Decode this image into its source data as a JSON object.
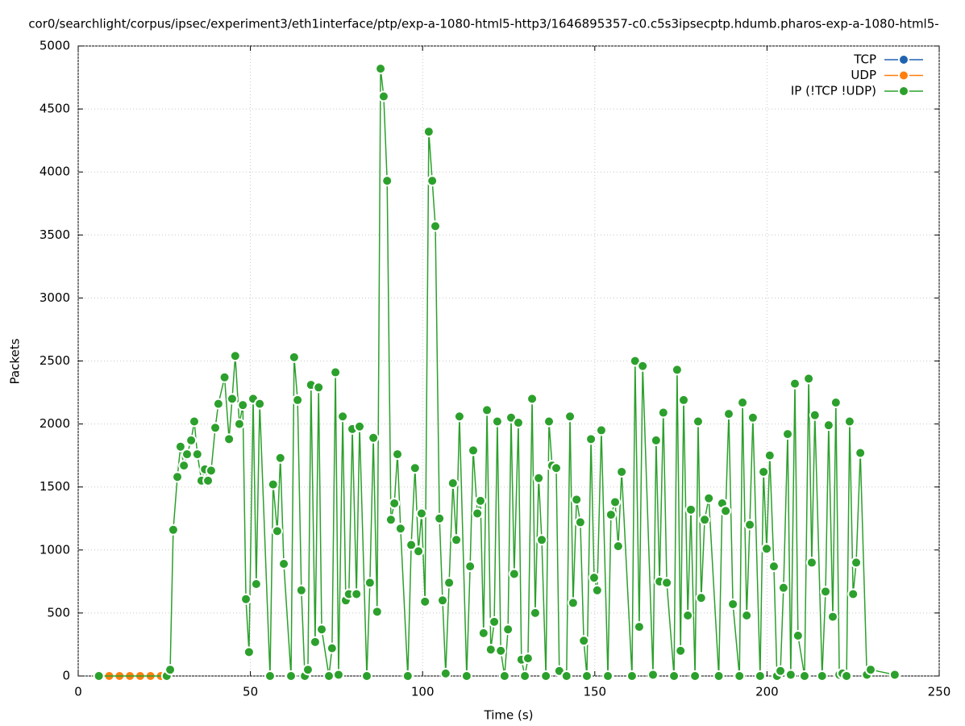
{
  "chart_data": {
    "type": "line",
    "title": "cor0/searchlight/corpus/ipsec/experiment3/eth1interface/ptp/exp-a-1080-html5-http3/1646895357-c0.c5s3ipsecptp.hdumb.pharos-exp-a-1080-html5-",
    "x_label": "Time (s)",
    "y_label": "Packets",
    "xlim": [
      0,
      250
    ],
    "xticks": [
      0,
      50,
      100,
      150,
      200,
      250
    ],
    "ylim": [
      0,
      5000
    ],
    "yticks": [
      0,
      500,
      1000,
      1500,
      2000,
      2500,
      3000,
      3500,
      4000,
      4500,
      5000
    ],
    "grid": true,
    "legend": "top-right",
    "series": [
      {
        "name": "TCP",
        "color": "#1f63b0",
        "x": [
          6,
          9,
          12,
          15,
          18,
          21,
          24
        ],
        "values": [
          0,
          0,
          0,
          0,
          0,
          0,
          0
        ]
      },
      {
        "name": "UDP",
        "color": "#ff7f0e",
        "x": [
          6,
          9,
          12,
          15,
          18,
          21,
          24
        ],
        "values": [
          0,
          0,
          0,
          0,
          0,
          0,
          0
        ]
      },
      {
        "name": "IP (!TCP  !UDP)",
        "color": "#2ca02c",
        "x": [
          6,
          25.7,
          26.7,
          27.6,
          28.8,
          29.7,
          30.7,
          31.6,
          32.8,
          33.7,
          34.6,
          35.8,
          36.8,
          37.7,
          38.6,
          39.8,
          40.7,
          42.5,
          43.8,
          44.7,
          45.6,
          46.8,
          47.8,
          48.7,
          49.6,
          50.8,
          51.7,
          52.7,
          55.7,
          56.6,
          57.8,
          58.7,
          59.7,
          61.8,
          62.7,
          63.7,
          64.8,
          65.8,
          66.7,
          67.6,
          68.8,
          69.8,
          70.7,
          72.8,
          73.7,
          74.7,
          75.6,
          76.8,
          77.7,
          78.6,
          79.6,
          80.8,
          81.7,
          83.8,
          84.7,
          85.7,
          86.8,
          87.8,
          88.7,
          89.7,
          90.8,
          91.8,
          92.7,
          93.6,
          95.7,
          96.7,
          97.8,
          98.8,
          99.7,
          100.7,
          101.8,
          102.8,
          103.7,
          104.9,
          105.8,
          106.7,
          107.7,
          108.8,
          109.8,
          110.7,
          112.8,
          113.8,
          114.7,
          115.9,
          116.8,
          117.7,
          118.7,
          119.8,
          120.8,
          121.7,
          122.7,
          123.8,
          124.8,
          125.7,
          126.6,
          127.8,
          128.7,
          129.7,
          130.6,
          131.8,
          132.7,
          133.7,
          134.6,
          135.8,
          136.7,
          137.6,
          138.8,
          139.7,
          141.8,
          142.8,
          143.7,
          144.7,
          145.8,
          146.8,
          147.7,
          148.9,
          149.8,
          150.7,
          151.9,
          153.8,
          154.7,
          155.9,
          156.8,
          157.8,
          160.8,
          161.7,
          162.9,
          163.9,
          166.9,
          167.8,
          168.8,
          169.9,
          170.9,
          173,
          173.9,
          174.9,
          175.8,
          177,
          177.9,
          179.1,
          180,
          180.9,
          181.9,
          183.1,
          186,
          187,
          188,
          188.9,
          190.1,
          192,
          192.9,
          194.1,
          195,
          195.9,
          198,
          199,
          199.9,
          200.8,
          202,
          202.9,
          203.9,
          204.8,
          206,
          206.9,
          208.1,
          209,
          210.9,
          212.1,
          213,
          213.9,
          216,
          217,
          217.9,
          219.1,
          220,
          221,
          221.9,
          223.1,
          224,
          225,
          225.9,
          227.1,
          229,
          230.1,
          237.1
        ],
        "values": [
          0,
          0,
          50,
          1160,
          1580,
          1820,
          1670,
          1760,
          1870,
          2020,
          1760,
          1550,
          1640,
          1550,
          1630,
          1970,
          2160,
          2370,
          1880,
          2200,
          2540,
          2000,
          2150,
          610,
          190,
          2200,
          730,
          2160,
          0,
          1520,
          1150,
          1730,
          890,
          0,
          2530,
          2190,
          680,
          0,
          50,
          2310,
          270,
          2290,
          370,
          0,
          220,
          2410,
          10,
          2060,
          600,
          650,
          1960,
          650,
          1980,
          0,
          740,
          1890,
          510,
          4820,
          4600,
          3930,
          1240,
          1370,
          1760,
          1170,
          0,
          1040,
          1650,
          990,
          1290,
          590,
          4320,
          3930,
          3570,
          1250,
          600,
          20,
          740,
          1530,
          1080,
          2060,
          0,
          870,
          1790,
          1290,
          1390,
          340,
          2110,
          210,
          430,
          2020,
          200,
          0,
          370,
          2050,
          810,
          2010,
          130,
          0,
          140,
          2200,
          500,
          1570,
          1080,
          0,
          2020,
          1670,
          1650,
          40,
          0,
          2060,
          580,
          1400,
          1220,
          280,
          0,
          1880,
          780,
          680,
          1950,
          0,
          1280,
          1380,
          1030,
          1620,
          0,
          2500,
          390,
          2460,
          10,
          1870,
          750,
          2090,
          740,
          0,
          2430,
          200,
          2190,
          480,
          1320,
          0,
          2020,
          620,
          1240,
          1410,
          0,
          1370,
          1310,
          2080,
          570,
          0,
          2170,
          480,
          1200,
          2050,
          0,
          1620,
          1010,
          1750,
          870,
          0,
          40,
          700,
          1920,
          10,
          2320,
          320,
          0,
          2360,
          900,
          2070,
          0,
          670,
          1990,
          470,
          2170,
          10,
          20,
          0,
          2020,
          650,
          900,
          1770,
          10,
          50,
          10
        ]
      }
    ]
  }
}
